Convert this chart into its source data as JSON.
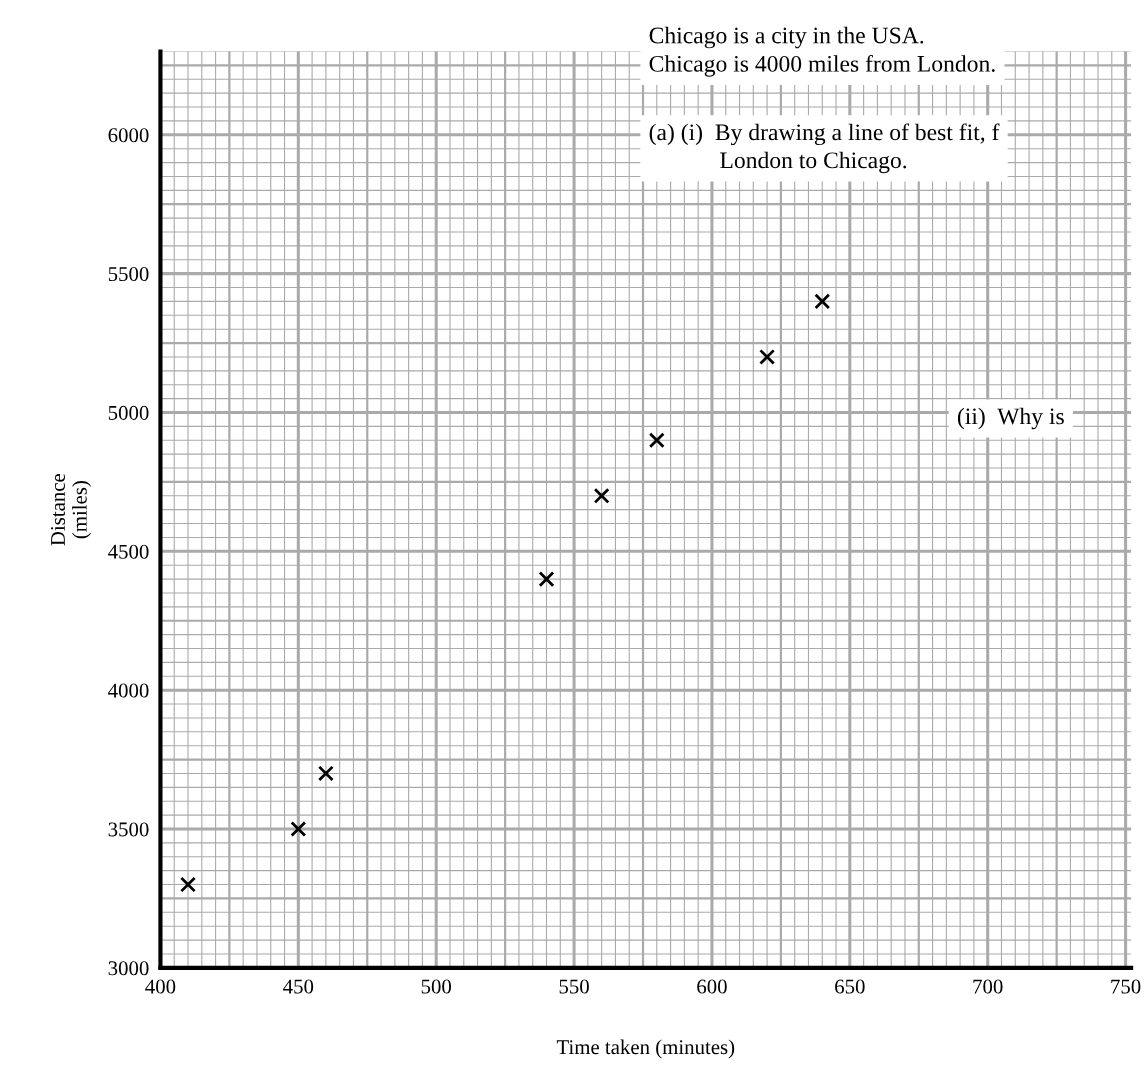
{
  "chart_data": {
    "type": "scatter",
    "xlabel": "Time taken (minutes)",
    "ylabel": "Distance\n(miles)",
    "x": [
      410,
      450,
      460,
      540,
      560,
      580,
      620,
      640
    ],
    "values": [
      3300,
      3500,
      3700,
      4400,
      4700,
      4900,
      5200,
      5400
    ],
    "color": "#000000",
    "marker": "cross",
    "xlim": [
      400,
      752
    ],
    "ylim": [
      3000,
      6300
    ],
    "xticks": [
      400,
      450,
      500,
      550,
      600,
      650,
      700,
      750
    ],
    "yticks": [
      3000,
      3500,
      4000,
      4500,
      5000,
      5500,
      6000
    ],
    "grid": true,
    "annotations": [
      "Chicago is a city in the USA.\nChicago is 4000 miles from London.",
      "(a) (i)  By drawing a line of best fit, f\n            London to Chicago.",
      "(ii)  Why is"
    ]
  }
}
